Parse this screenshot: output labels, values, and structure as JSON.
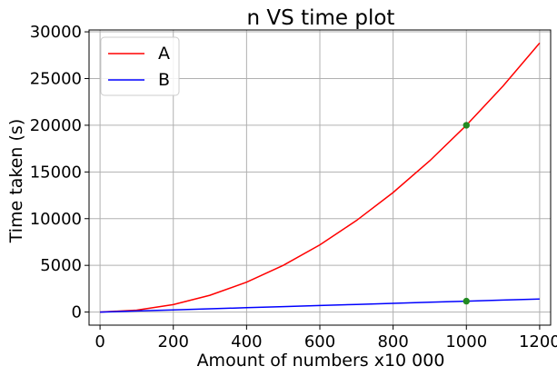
{
  "chart_data": {
    "type": "line",
    "title": "n VS time plot",
    "xlabel": "Amount of numbers x10 000",
    "ylabel": "Time taken (s)",
    "xlim": [
      -30,
      1230
    ],
    "ylim": [
      -1400,
      30200
    ],
    "xticks": [
      0,
      200,
      400,
      600,
      800,
      1000,
      1200
    ],
    "yticks": [
      0,
      5000,
      10000,
      15000,
      20000,
      25000,
      30000
    ],
    "grid": true,
    "legend_position": "top-left",
    "series": [
      {
        "name": "A",
        "color": "#ff0000",
        "x": [
          0,
          100,
          200,
          300,
          400,
          500,
          600,
          700,
          800,
          900,
          1000,
          1100,
          1200
        ],
        "y": [
          0,
          200,
          800,
          1800,
          3200,
          5000,
          7200,
          9800,
          12800,
          16200,
          20000,
          24200,
          28800
        ]
      },
      {
        "name": "B",
        "color": "#0000ff",
        "x": [
          0,
          100,
          200,
          300,
          400,
          500,
          600,
          700,
          800,
          900,
          1000,
          1100,
          1200
        ],
        "y": [
          0,
          117,
          233,
          350,
          467,
          583,
          700,
          817,
          933,
          1050,
          1167,
          1283,
          1400
        ]
      }
    ],
    "markers": [
      {
        "x": 1000,
        "y": 20000,
        "color": "#228b22"
      },
      {
        "x": 1000,
        "y": 1167,
        "color": "#228b22"
      }
    ]
  }
}
